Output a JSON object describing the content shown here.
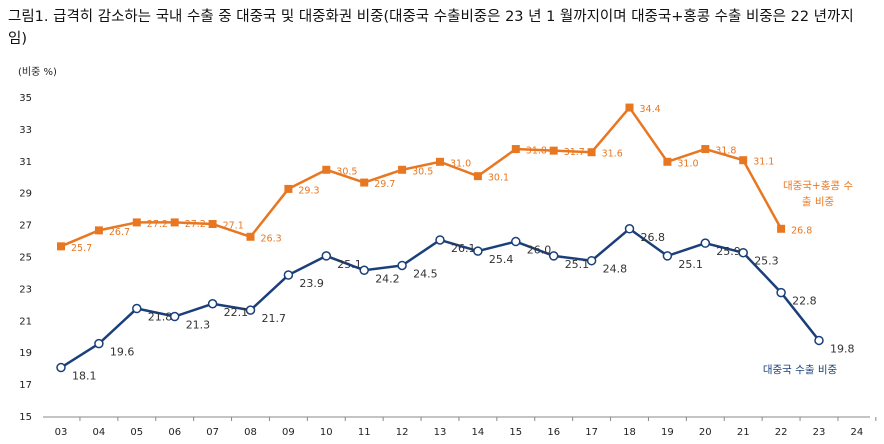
{
  "chart_data": {
    "type": "line",
    "title": "그림1.  급격히 감소하는 국내 수출 중 대중국 및 대중화권 비중(대중국 수출비중은 23 년 1 월까지이며 대중국+홍콩 수출 비중은 22 년까지임)",
    "y_label": "(비중 %)",
    "categories": [
      "03",
      "04",
      "05",
      "06",
      "07",
      "08",
      "09",
      "10",
      "11",
      "12",
      "13",
      "14",
      "15",
      "16",
      "17",
      "18",
      "19",
      "20",
      "21",
      "22",
      "23",
      "24"
    ],
    "series": [
      {
        "name": "대중국+홍콩 수출 비중",
        "color": "#e87722",
        "marker": "square",
        "values": [
          25.7,
          26.7,
          27.2,
          27.2,
          27.1,
          26.3,
          29.3,
          30.5,
          29.7,
          30.5,
          31.0,
          30.1,
          31.8,
          31.7,
          31.6,
          34.4,
          31.0,
          31.8,
          31.1,
          26.8,
          null,
          null
        ],
        "value_labels": [
          "25.7",
          "26.7",
          "27.2",
          "27.2",
          "27.1",
          "26.3",
          "29.3",
          "30.5",
          "29.7",
          "30.5",
          "31.0",
          "30.1",
          "31.8",
          "31.7",
          "31.6",
          "34.4",
          "31.0",
          "31.8",
          "31.1",
          "26.8",
          null,
          null
        ]
      },
      {
        "name": "대중국 수출 비중",
        "color": "#1a3f7a",
        "marker": "circle",
        "values": [
          18.1,
          19.6,
          21.8,
          21.3,
          22.1,
          21.7,
          23.9,
          25.1,
          24.2,
          24.5,
          26.1,
          25.4,
          26.0,
          25.1,
          24.8,
          26.8,
          25.1,
          25.9,
          25.3,
          22.8,
          19.8,
          null
        ],
        "value_labels": [
          "18.1",
          "19.6",
          "21.8",
          "21.3",
          "22.1",
          "21.7",
          "23.9",
          "25.1",
          "24.2",
          "24.5",
          "26.1",
          "25.4",
          "26.0",
          "25.1",
          "24.8",
          "26.8",
          "25.1",
          "25.9",
          "25.3",
          "22.8",
          "19.8",
          null
        ]
      }
    ],
    "ylim": [
      15,
      35
    ],
    "yticks": [
      15,
      17,
      19,
      21,
      23,
      25,
      27,
      29,
      31,
      33,
      35
    ],
    "grid": false
  }
}
